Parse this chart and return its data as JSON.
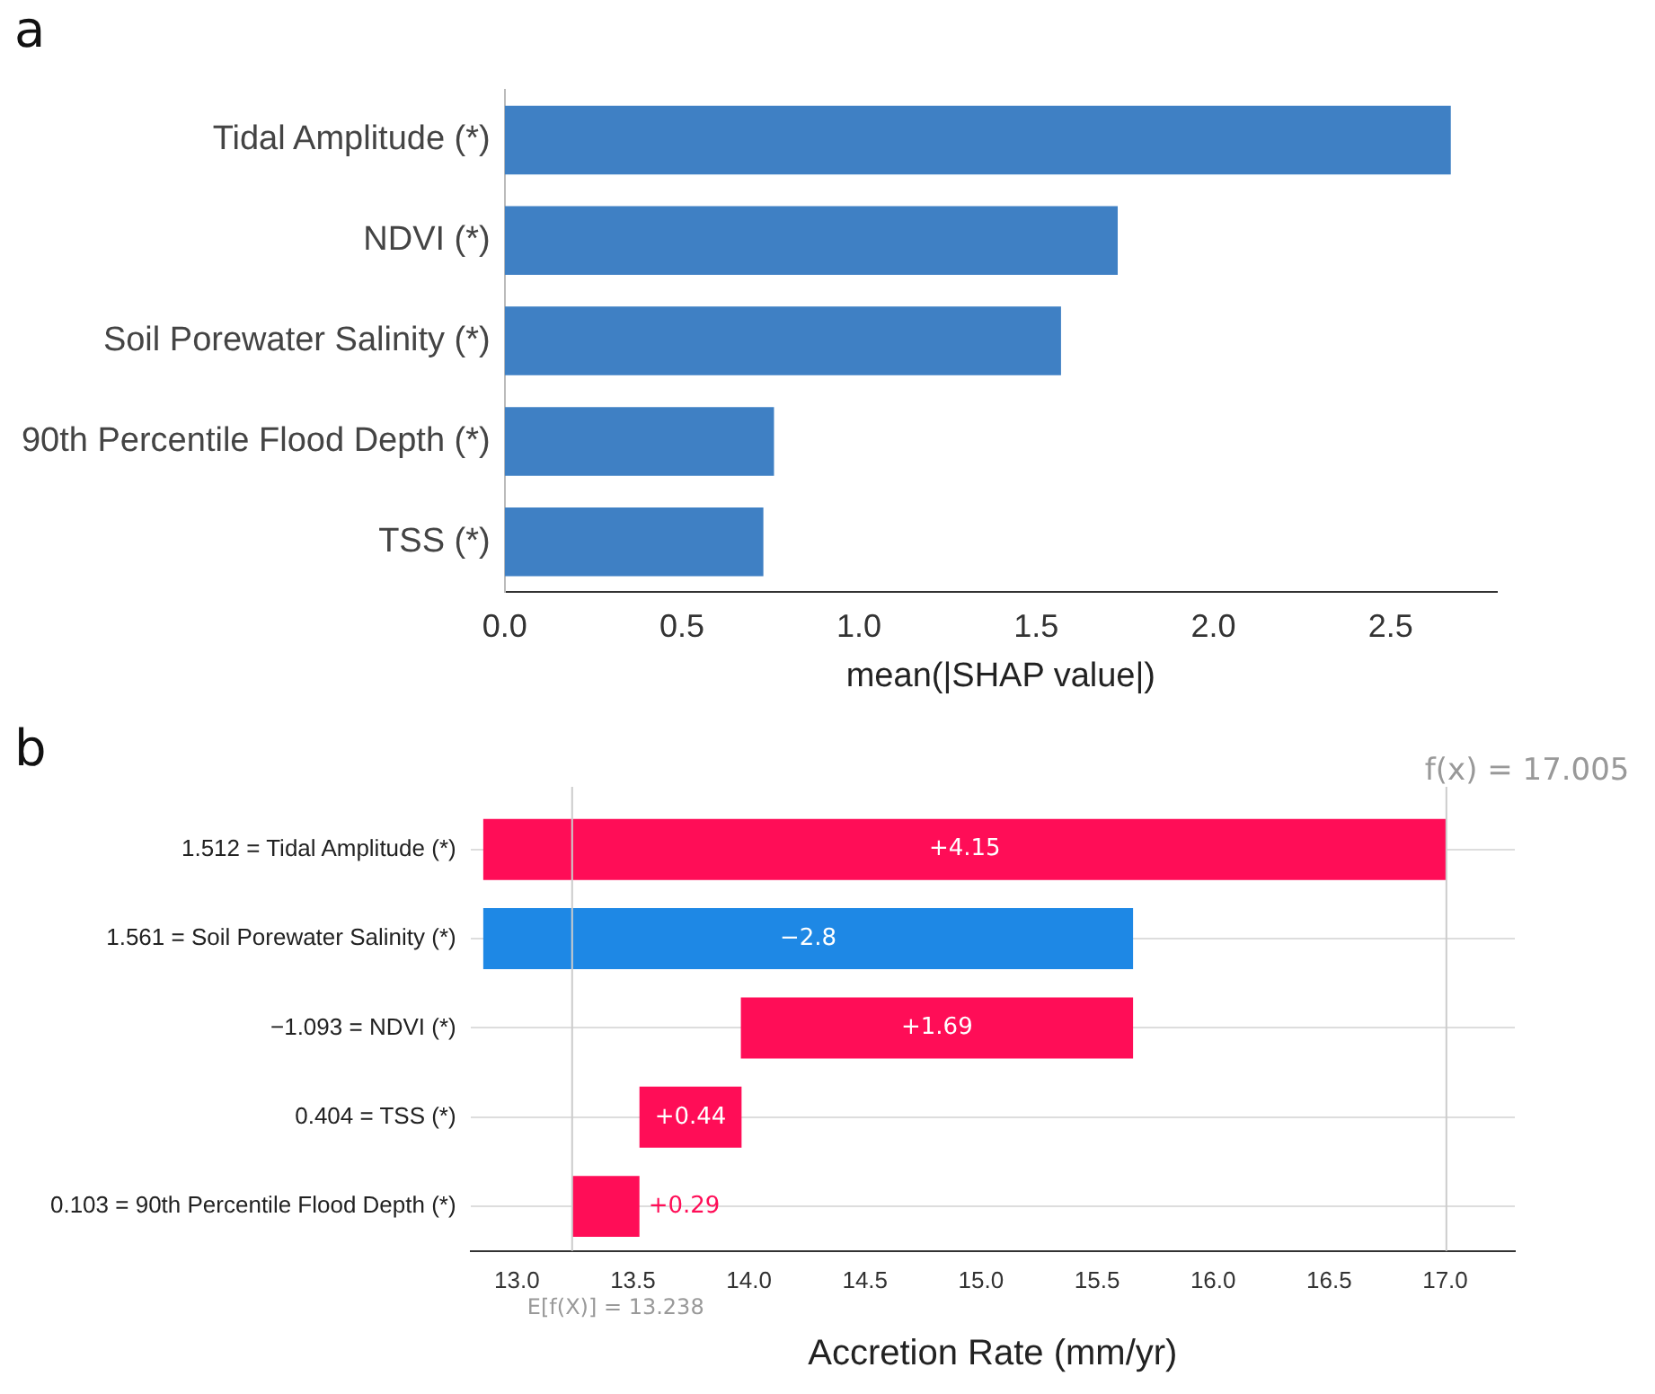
{
  "chart_data": [
    {
      "type": "bar",
      "title": "a",
      "orientation": "horizontal",
      "categories": [
        "Tidal Amplitude (*)",
        "NDVI (*)",
        "Soil Porewater Salinity (*)",
        "90th Percentile Flood Depth (*)",
        "TSS (*)"
      ],
      "values": [
        2.67,
        1.73,
        1.57,
        0.76,
        0.73
      ],
      "color": "#3f80c4",
      "xlabel": "mean(|SHAP value|)",
      "xlim": [
        0,
        2.8
      ],
      "xticks": [
        {
          "value": 0,
          "label": "0.0"
        },
        {
          "value": 0.5,
          "label": "0.5"
        },
        {
          "value": 1,
          "label": "1.0"
        },
        {
          "value": 1.5,
          "label": "1.5"
        },
        {
          "value": 2,
          "label": "2.0"
        },
        {
          "value": 2.5,
          "label": "2.5"
        }
      ],
      "legend": false
    },
    {
      "type": "bar",
      "title": "b",
      "orientation": "horizontal",
      "categories": [
        "1.512 = Tidal Amplitude (*)",
        "1.561 = Soil Porewater Salinity (*)",
        "−1.093 = NDVI (*)",
        "0.404 = TSS (*)",
        "0.103 = 90th Percentile Flood Depth (*)"
      ],
      "values": [
        4.15,
        -2.8,
        1.69,
        0.44,
        0.29
      ],
      "base": [
        12.855,
        15.655,
        13.965,
        13.528,
        13.238
      ],
      "colors": [
        "#ff0d57",
        "#1e88e5",
        "#ff0d57",
        "#ff0d57",
        "#ff0d57"
      ],
      "value_labels": [
        "+4.15",
        "−2.8",
        "+1.69",
        "+0.44",
        "+0.29"
      ],
      "xlabel": "Accretion Rate (mm/yr)",
      "xlim": [
        12.8,
        17.3
      ],
      "xticks": [
        {
          "value": 13,
          "label": "13.0"
        },
        {
          "value": 13.5,
          "label": "13.5"
        },
        {
          "value": 14,
          "label": "14.0"
        },
        {
          "value": 14.5,
          "label": "14.5"
        },
        {
          "value": 15,
          "label": "15.0"
        },
        {
          "value": 15.5,
          "label": "15.5"
        },
        {
          "value": 16,
          "label": "16.0"
        },
        {
          "value": 16.5,
          "label": "16.5"
        },
        {
          "value": 17,
          "label": "17.0"
        }
      ],
      "ref_lines": [
        {
          "axis": "x",
          "value": 17.005,
          "label": "f(x) = 17.005"
        },
        {
          "axis": "x",
          "value": 13.238,
          "label": "E[f(X)] = 13.238"
        }
      ],
      "grid": "y",
      "legend": false
    }
  ]
}
